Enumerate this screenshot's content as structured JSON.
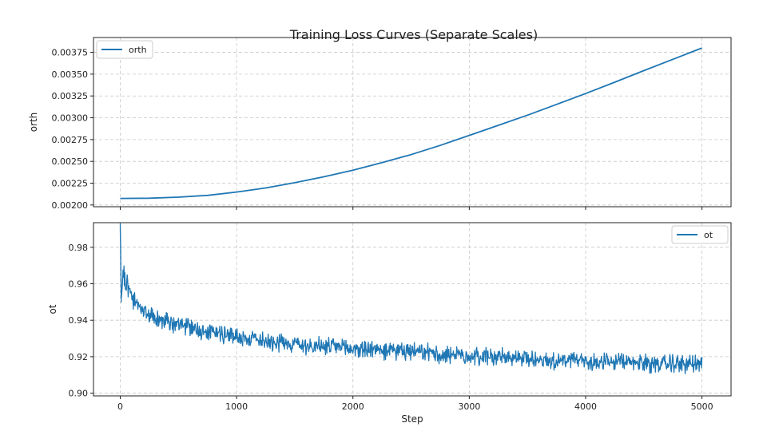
{
  "chart_data": {
    "type": "line",
    "title": "Training Loss Curves (Separate Scales)",
    "xlabel": "Step",
    "x_ticks": [
      0,
      1000,
      2000,
      3000,
      4000,
      5000
    ],
    "x_tick_labels": [
      "0",
      "1000",
      "2000",
      "3000",
      "4000",
      "5000"
    ],
    "xlim": [
      -230,
      5250
    ],
    "color": "#1f77b4",
    "panels": [
      {
        "id": "orth",
        "ylabel": "orth",
        "ylim": [
          0.00198,
          0.00392
        ],
        "y_ticks": [
          0.002,
          0.00225,
          0.0025,
          0.00275,
          0.003,
          0.00325,
          0.0035,
          0.00375
        ],
        "y_tick_labels": [
          "0.00200",
          "0.00225",
          "0.00250",
          "0.00275",
          "0.00300",
          "0.00325",
          "0.00350",
          "0.00375"
        ],
        "legend": {
          "label": "orth",
          "position": "upper-left"
        },
        "series": [
          {
            "name": "orth",
            "x": [
              0,
              250,
              500,
              750,
              1000,
              1250,
              1500,
              1750,
              2000,
              2250,
              2500,
              2750,
              3000,
              3250,
              3500,
              3750,
              4000,
              4250,
              4500,
              4750,
              5000
            ],
            "y": [
              0.002075,
              0.002078,
              0.00209,
              0.00211,
              0.002148,
              0.002195,
              0.002255,
              0.002323,
              0.002398,
              0.002485,
              0.002578,
              0.002683,
              0.002798,
              0.002913,
              0.00303,
              0.003153,
              0.003278,
              0.003408,
              0.00354,
              0.00367,
              0.0038
            ]
          }
        ]
      },
      {
        "id": "ot",
        "ylabel": "ot",
        "ylim": [
          0.8985,
          0.9935
        ],
        "y_ticks": [
          0.9,
          0.92,
          0.94,
          0.96,
          0.98
        ],
        "y_tick_labels": [
          "0.90",
          "0.92",
          "0.94",
          "0.96",
          "0.98"
        ],
        "legend": {
          "label": "ot",
          "position": "upper-right"
        },
        "series": [
          {
            "name": "ot",
            "x": [
              0,
              10,
              25,
              50,
              75,
              100,
              150,
              200,
              300,
              400,
              500,
              750,
              1000,
              1250,
              1500,
              1750,
              2000,
              2250,
              2500,
              2750,
              3000,
              3250,
              3500,
              3750,
              4000,
              4250,
              4500,
              4750,
              5000
            ],
            "y": [
              0.991,
              0.95,
              0.967,
              0.962,
              0.958,
              0.953,
              0.948,
              0.945,
              0.941,
              0.939,
              0.937,
              0.934,
              0.931,
              0.929,
              0.927,
              0.9255,
              0.9245,
              0.9235,
              0.9225,
              0.9215,
              0.9205,
              0.92,
              0.919,
              0.918,
              0.9175,
              0.917,
              0.9165,
              0.916,
              0.916
            ],
            "noise_amplitude": 0.012
          }
        ]
      }
    ]
  }
}
